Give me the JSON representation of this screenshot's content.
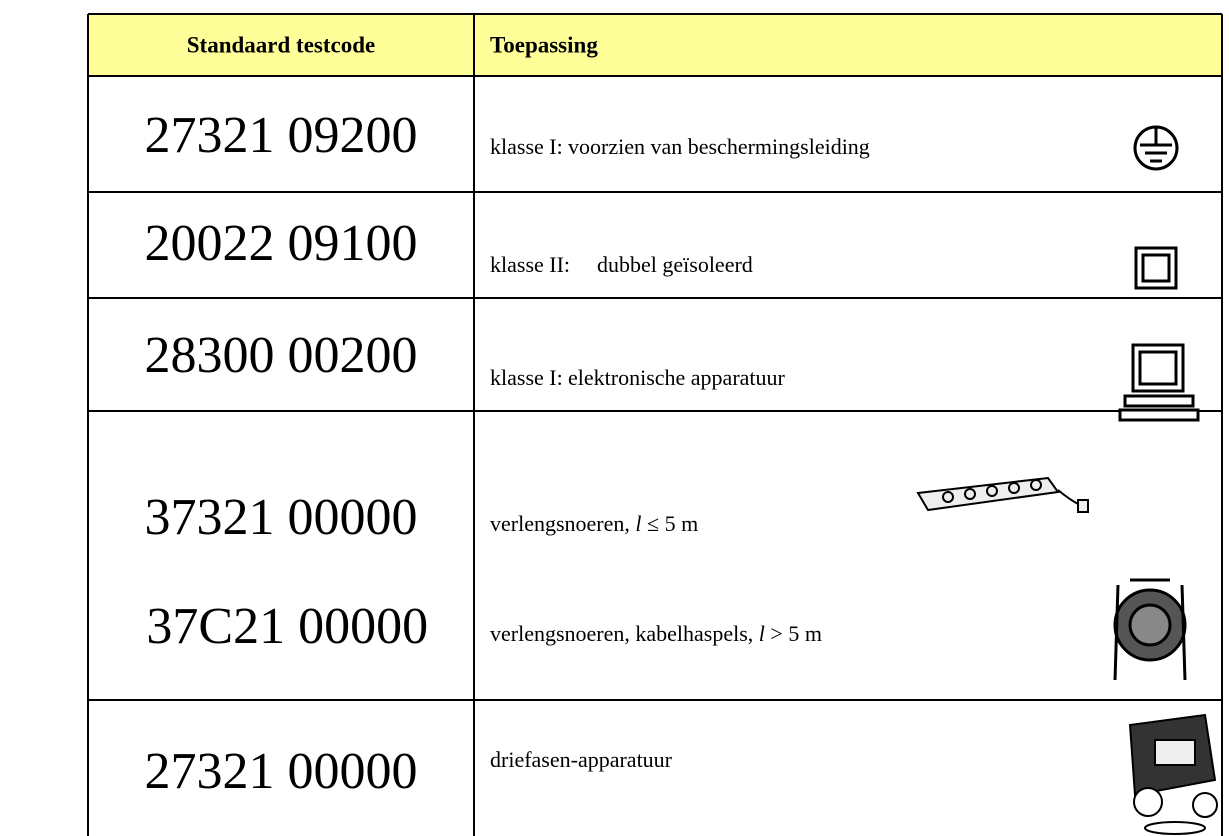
{
  "table": {
    "header": [
      "Standaard testcode",
      "Toepassing"
    ],
    "rows": [
      {
        "codes": [
          "27321 09200"
        ],
        "lines": [
          {
            "label": "klasse I:",
            "text": "voorzien van beschermingsleiding"
          }
        ]
      },
      {
        "codes": [
          "20022 09100"
        ],
        "lines": [
          {
            "label": "klasse II:",
            "text": "dubbel geïsoleerd"
          }
        ]
      },
      {
        "codes": [
          "28300 00200"
        ],
        "lines": [
          {
            "label": "klasse I:",
            "text": "elektronische apparatuur"
          }
        ]
      },
      {
        "codes": [
          "37321 00000",
          "37C21 00000"
        ],
        "lines": [
          {
            "parts": [
              "verlengsnoeren, ",
              "l",
              " ≤ 5 m"
            ]
          },
          {
            "parts": [
              "verlengsnoeren, kabelhaspels, ",
              "l",
              " > 5 m"
            ]
          }
        ]
      },
      {
        "codes": [
          "27321 00000"
        ],
        "lines": [
          {
            "text": "driefasen-apparatuur"
          }
        ]
      }
    ]
  }
}
